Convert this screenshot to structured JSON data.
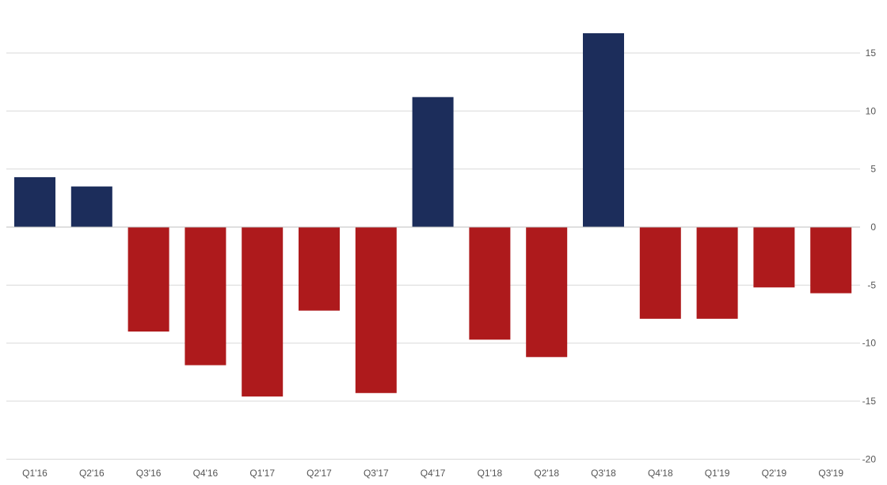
{
  "chart_data": {
    "type": "bar",
    "title": "",
    "xlabel": "",
    "ylabel": "",
    "categories": [
      "Q1'16",
      "Q2'16",
      "Q3'16",
      "Q4'16",
      "Q1'17",
      "Q2'17",
      "Q3'17",
      "Q4'17",
      "Q1'18",
      "Q2'18",
      "Q3'18",
      "Q4'18",
      "Q1'19",
      "Q2'19",
      "Q3'19"
    ],
    "values": [
      4.3,
      3.5,
      -9.0,
      -11.9,
      -14.6,
      -7.2,
      -14.3,
      11.2,
      -9.7,
      -11.2,
      16.7,
      -7.9,
      -7.9,
      -5.2,
      -5.7
    ],
    "ylim": [
      -20,
      17
    ],
    "yticks": [
      15,
      10,
      5,
      0,
      -5,
      -10,
      -15,
      -20
    ],
    "grid": true,
    "y_axis_side": "right",
    "colors": {
      "positive": "#1c2d5b",
      "negative": "#ae1a1c",
      "grid": "#d9d9d9",
      "zero_line": "#bfbfbf",
      "text": "#555555"
    }
  }
}
